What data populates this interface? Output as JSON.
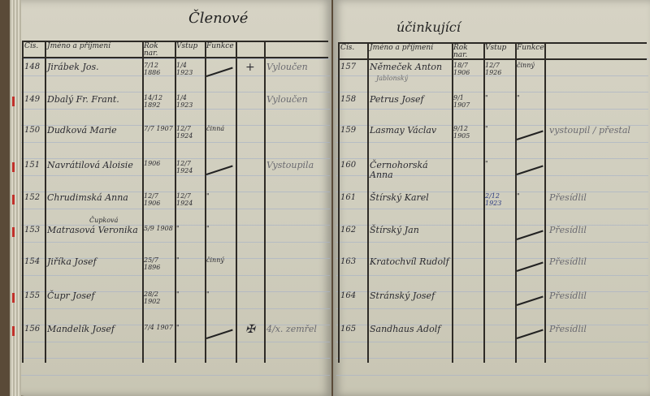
{
  "left_page": {
    "title": "Členové",
    "headers": [
      "Čís.",
      "Jméno a příjmení",
      "Rok nar.",
      "Vstup",
      "Funkce"
    ],
    "rows": [
      {
        "num": "148",
        "name": "Jirábek Jos.",
        "born": "7/12 1886",
        "entry": "1/4 1923",
        "func": "",
        "struck": true,
        "mark": "+",
        "note": "Vyloučen"
      },
      {
        "num": "149",
        "name": "Dbalý Fr. Frant.",
        "born": "14/12 1892",
        "entry": "1/4 1923",
        "func": "",
        "struck": false,
        "mark": "",
        "note": "Vyloučen"
      },
      {
        "num": "150",
        "name": "Dudková Marie",
        "born": "7/7 1907",
        "entry": "12/7 1924",
        "func": "činná",
        "struck": false,
        "mark": "",
        "note": ""
      },
      {
        "num": "151",
        "name": "Navrátilová Aloisie",
        "born": "1906",
        "entry": "12/7 1924",
        "func": "",
        "struck": true,
        "mark": "",
        "note": "Vystoupila"
      },
      {
        "num": "152",
        "name": "Chrudimská Anna",
        "born": "12/7 1906",
        "entry": "12/7 1924",
        "func": "\"",
        "struck": false,
        "mark": "",
        "note": ""
      },
      {
        "num": "153",
        "name": "Matrasová Veronika",
        "name_above": "Čupková",
        "born": "5/9 1908",
        "entry": "\"",
        "func": "\"",
        "struck": false,
        "mark": "",
        "note": ""
      },
      {
        "num": "154",
        "name": "Jiříka Josef",
        "born": "25/7 1896",
        "entry": "\"",
        "func": "činný",
        "struck": false,
        "mark": "",
        "note": ""
      },
      {
        "num": "155",
        "name": "Čupr Josef",
        "born": "28/2 1902",
        "entry": "\"",
        "func": "\"",
        "struck": false,
        "mark": "",
        "note": ""
      },
      {
        "num": "156",
        "name": "Mandelík Josef",
        "born": "7/4 1907",
        "entry": "\"",
        "func": "",
        "struck": true,
        "mark": "✠",
        "note": "4/x. zemřel"
      }
    ]
  },
  "right_page": {
    "title": "účinkující",
    "headers": [
      "Čís.",
      "Jméno a příjmení",
      "Rok nar.",
      "Vstup",
      "Funkce"
    ],
    "rows": [
      {
        "num": "157",
        "name": "Němeček Anton",
        "name_below": "Jablonský",
        "born": "18/7 1906",
        "entry": "12/7 1926",
        "func": "činný",
        "struck": false,
        "note": ""
      },
      {
        "num": "158",
        "name": "Petrus Josef",
        "born": "9/1 1907",
        "entry": "\"",
        "func": "\"",
        "struck": false,
        "note": ""
      },
      {
        "num": "159",
        "name": "Lasmay Václav",
        "born": "9/12 1905",
        "entry": "\"",
        "func": "",
        "struck": true,
        "note": "vystoupil / přestal"
      },
      {
        "num": "160",
        "name": "Černohorská Anna",
        "born": "",
        "entry": "\"",
        "func": "",
        "struck": true,
        "note": ""
      },
      {
        "num": "161",
        "name": "Štírský Karel",
        "born": "",
        "entry": "2/12 1923",
        "func": "\"",
        "struck": false,
        "note": "Přesídlil"
      },
      {
        "num": "162",
        "name": "Štírský Jan",
        "born": "",
        "entry": "",
        "func": "",
        "struck": true,
        "note": "Přesídlil"
      },
      {
        "num": "163",
        "name": "Kratochvíl Rudolf",
        "born": "",
        "entry": "",
        "func": "",
        "struck": true,
        "note": "Přesídlil"
      },
      {
        "num": "164",
        "name": "Stránský Josef",
        "born": "",
        "entry": "",
        "func": "",
        "struck": true,
        "note": "Přesídlil"
      },
      {
        "num": "165",
        "name": "Sandhaus Adolf",
        "born": "",
        "entry": "",
        "func": "",
        "struck": true,
        "note": "Přesídlil"
      }
    ]
  }
}
